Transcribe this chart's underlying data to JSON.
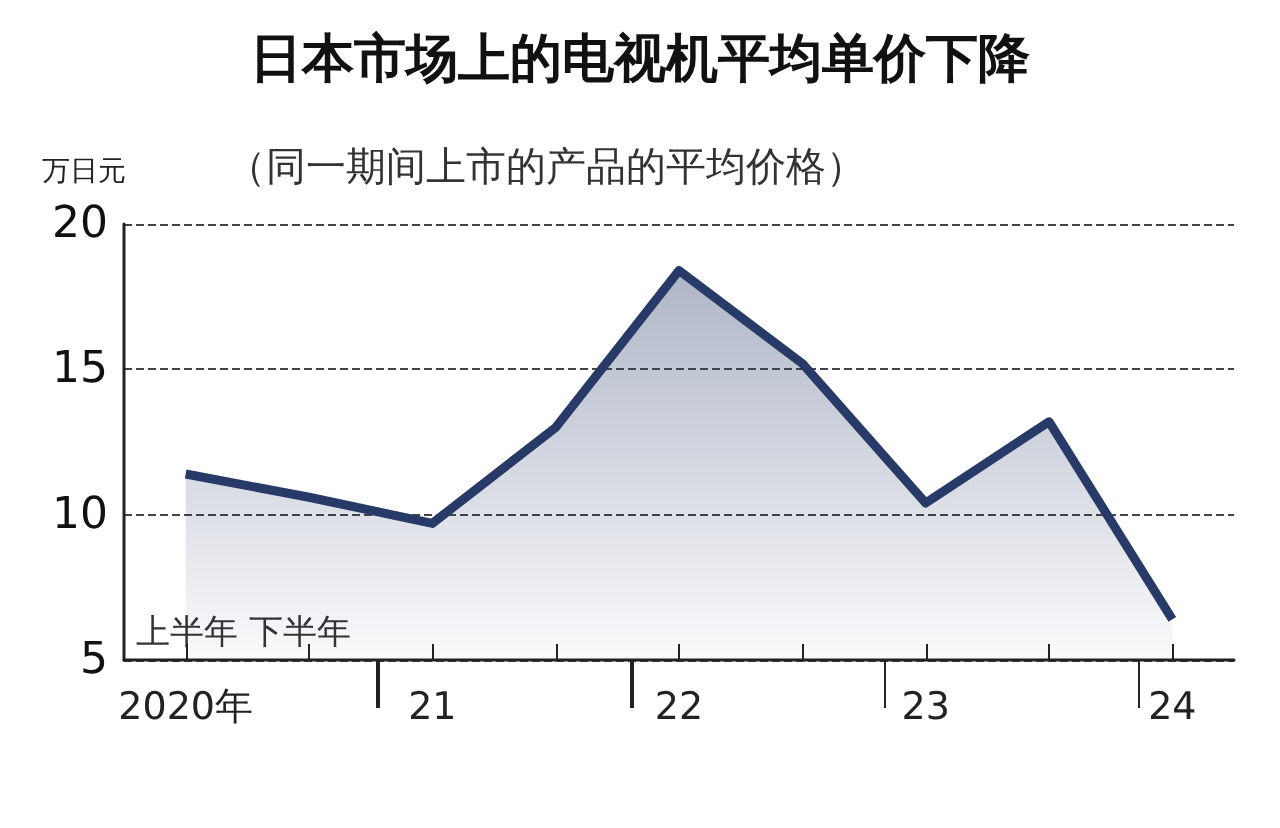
{
  "chart_data": {
    "type": "area",
    "title": "日本市场上的电视机平均单价下降",
    "subtitle": "（同一期间上市的产品的平均价格）",
    "ylabel": "万日元",
    "categories": [
      "2020年",
      null,
      "21",
      null,
      "22",
      null,
      "23",
      null,
      "24"
    ],
    "series": [
      {
        "color": "#283a68",
        "values": [
          11.4,
          10.6,
          9.7,
          13.0,
          18.4,
          15.2,
          10.4,
          13.2,
          6.4
        ]
      }
    ],
    "ylim": [
      5,
      20
    ],
    "yticks": [
      5,
      10,
      15,
      20
    ],
    "grid": "y",
    "annotations": [
      "上半年 下半年"
    ]
  }
}
